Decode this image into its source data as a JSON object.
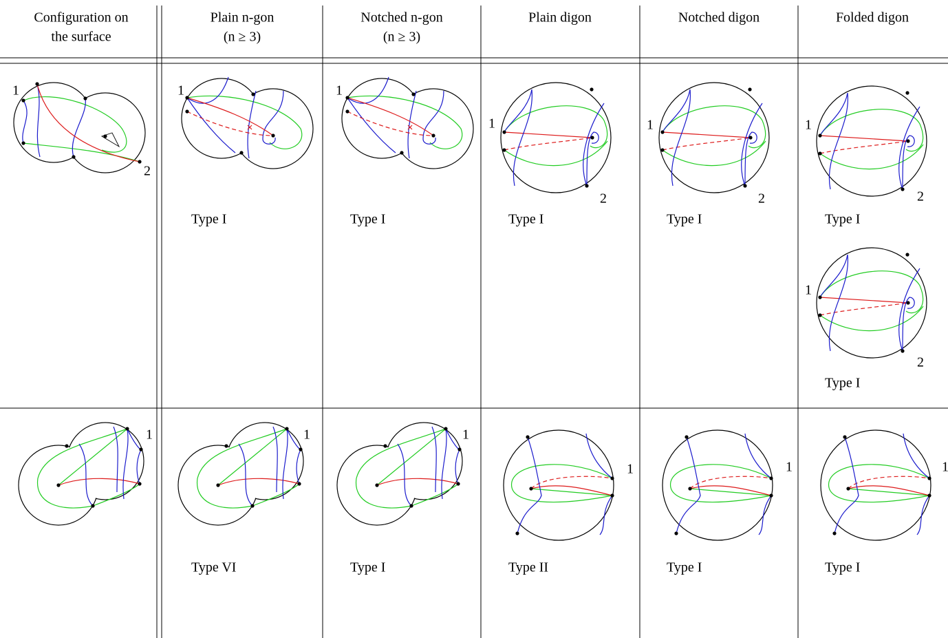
{
  "table": {
    "headers": [
      [
        "Configuration on",
        "the surface"
      ],
      [
        "Plain n-gon",
        "(n ≥ 3)"
      ],
      [
        "Notched n-gon",
        "(n ≥ 3)"
      ],
      [
        "Plain digon"
      ],
      [
        "Notched digon"
      ],
      [
        "Folded digon"
      ]
    ],
    "rows": [
      {
        "cells": [
          {
            "figures": [
              {
                "markers": [
                  "1",
                  "2"
                ]
              }
            ]
          },
          {
            "figures": [
              {
                "markers": [
                  "1"
                ],
                "type": "Type I"
              }
            ]
          },
          {
            "figures": [
              {
                "markers": [
                  "1"
                ],
                "type": "Type I"
              }
            ]
          },
          {
            "figures": [
              {
                "markers": [
                  "1",
                  "2"
                ],
                "type": "Type I"
              }
            ]
          },
          {
            "figures": [
              {
                "markers": [
                  "1",
                  "2"
                ],
                "type": "Type I"
              }
            ]
          },
          {
            "figures": [
              {
                "markers": [
                  "1",
                  "2"
                ],
                "type": "Type I"
              },
              {
                "markers": [
                  "1",
                  "2"
                ],
                "type": "Type I"
              }
            ]
          }
        ]
      },
      {
        "cells": [
          {
            "figures": [
              {
                "markers": [
                  "1"
                ]
              }
            ]
          },
          {
            "figures": [
              {
                "markers": [
                  "1"
                ],
                "type": "Type VI"
              }
            ]
          },
          {
            "figures": [
              {
                "markers": [
                  "1"
                ],
                "type": "Type I"
              }
            ]
          },
          {
            "figures": [
              {
                "markers": [
                  "1"
                ],
                "type": "Type II"
              }
            ]
          },
          {
            "figures": [
              {
                "markers": [
                  "1"
                ],
                "type": "Type I"
              }
            ]
          },
          {
            "figures": [
              {
                "markers": [
                  "1"
                ],
                "type": "Type I"
              }
            ]
          }
        ]
      }
    ]
  }
}
